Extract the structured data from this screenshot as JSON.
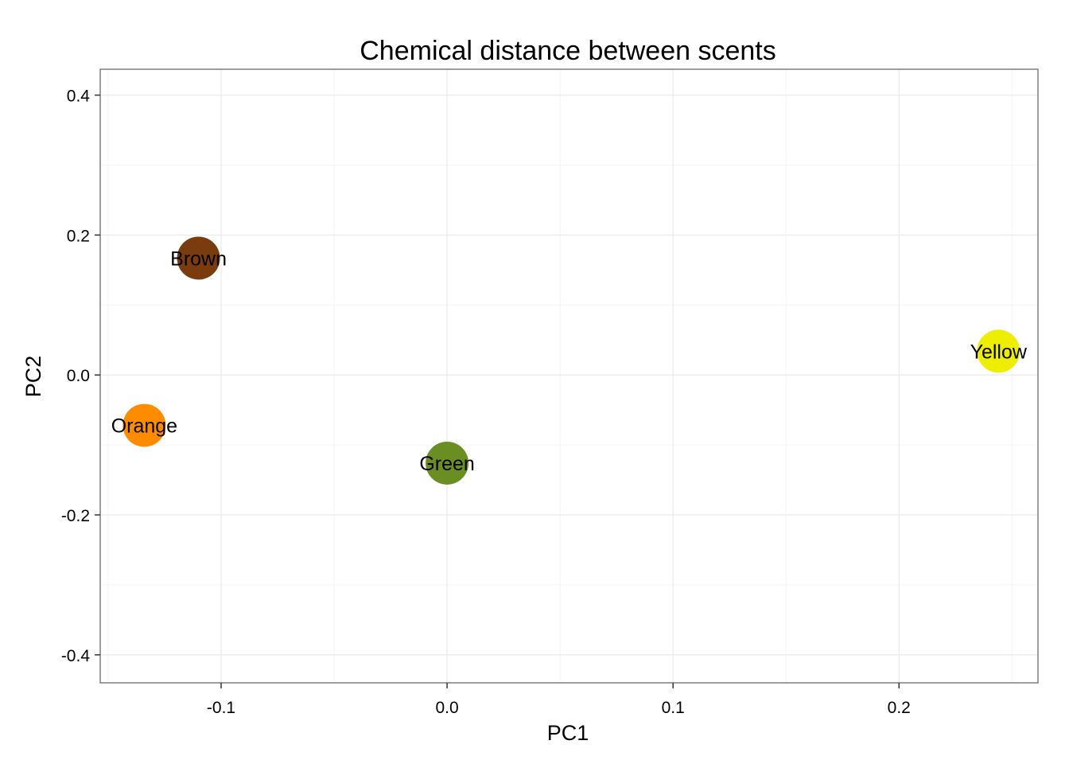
{
  "chart_data": {
    "type": "scatter",
    "title": "Chemical distance between scents",
    "xlabel": "PC1",
    "ylabel": "PC2",
    "xlim": [
      -0.1535,
      0.2615
    ],
    "ylim": [
      -0.44,
      0.437
    ],
    "x_ticks": [
      -0.1,
      0.0,
      0.1,
      0.2
    ],
    "x_tick_labels": [
      "-0.1",
      "0.0",
      "0.1",
      "0.2"
    ],
    "x_minor_ticks": [
      -0.15,
      -0.05,
      0.05,
      0.15,
      0.25
    ],
    "y_ticks": [
      -0.4,
      -0.2,
      0.0,
      0.2,
      0.4
    ],
    "y_tick_labels": [
      "-0.4",
      "-0.2",
      "0.0",
      "0.2",
      "0.4"
    ],
    "y_minor_ticks": [
      -0.3,
      -0.1,
      0.1,
      0.3
    ],
    "grid": true,
    "legend": "none",
    "points": [
      {
        "label": "Brown",
        "x": -0.11,
        "y": 0.167,
        "color": "#7a3c0f"
      },
      {
        "label": "Yellow",
        "x": 0.244,
        "y": 0.034,
        "color": "#eeee00"
      },
      {
        "label": "Orange",
        "x": -0.134,
        "y": -0.072,
        "color": "#ff8c00"
      },
      {
        "label": "Green",
        "x": 0.0,
        "y": -0.126,
        "color": "#6b8e23"
      }
    ]
  }
}
